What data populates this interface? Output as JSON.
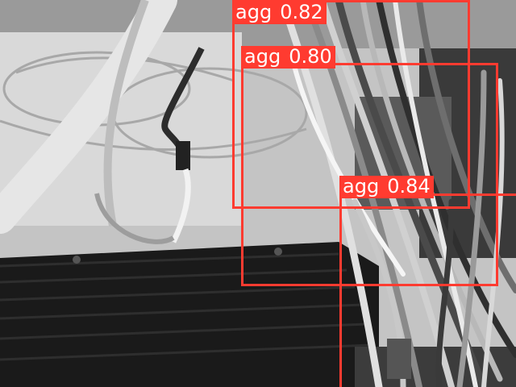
{
  "detections": [
    {
      "class": "agg",
      "score": "0.82",
      "color": "#ff3b30"
    },
    {
      "class": "agg",
      "score": "0.80",
      "color": "#ff3b30"
    },
    {
      "class": "agg",
      "score": "0.84",
      "color": "#ff3b30"
    }
  ]
}
